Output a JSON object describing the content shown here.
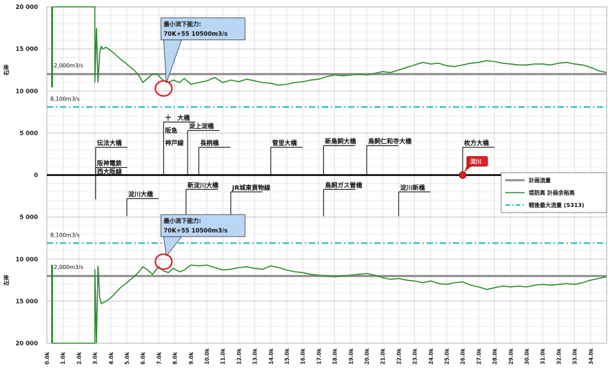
{
  "chart_data": {
    "type": "line",
    "x_range": [
      0,
      35
    ],
    "x_ticks": [
      "0.0k",
      "1.0k",
      "2.0k",
      "3.0k",
      "4.0k",
      "5.0k",
      "6.0k",
      "7.0k",
      "8.0k",
      "9.0k",
      "10.0k",
      "11.0k",
      "12.0k",
      "13.0k",
      "14.0k",
      "15.0k",
      "16.0k",
      "17.0k",
      "18.0k",
      "19.0k",
      "20.0k",
      "21.0k",
      "22.0k",
      "23.0k",
      "24.0k",
      "25.0k",
      "26.0k",
      "27.0k",
      "28.0k",
      "29.0k",
      "30.0k",
      "31.0k",
      "32.0k",
      "33.0k",
      "34.0k"
    ],
    "y_range": [
      -20000,
      20000
    ],
    "y_ticks": [
      {
        "value": 20000,
        "label": "20 000"
      },
      {
        "value": 15000,
        "label": "15 000"
      },
      {
        "value": 10000,
        "label": "10 000"
      },
      {
        "value": 5000,
        "label": "5 000"
      },
      {
        "value": 0,
        "label": "0"
      },
      {
        "value": -5000,
        "label": "5 000"
      },
      {
        "value": -10000,
        "label": "10 000"
      },
      {
        "value": -15000,
        "label": "15 000"
      },
      {
        "value": -20000,
        "label": "20 000"
      }
    ],
    "bank_labels": {
      "upper": "右岸",
      "lower": "左岸"
    },
    "grid": true,
    "reference_lines": [
      {
        "name": "計画流量",
        "value": 12000,
        "label": "12,000m3/s",
        "color": "#8c8c8c",
        "style": "solid"
      },
      {
        "name": "計画流量",
        "value": -12000,
        "label": "12,000m3/s",
        "color": "#8c8c8c",
        "style": "solid"
      },
      {
        "name": "戦後最大流量(S313)",
        "value": 8100,
        "label": "8,100m3/s",
        "color": "#2ec4c4",
        "style": "dashdot"
      },
      {
        "name": "戦後最大流量(S313)",
        "value": -8100,
        "label": "8,100m3/s",
        "color": "#2ec4c4",
        "style": "dashdot"
      }
    ],
    "series": [
      {
        "name": "堤防高 計画余裕高",
        "color": "#2e8b2e",
        "side": "upper",
        "x": [
          0.3,
          0.3,
          0.35,
          0.35,
          3.0,
          3.0,
          3.1,
          3.2,
          3.3,
          3.4,
          3.5,
          3.7,
          4.0,
          4.3,
          4.6,
          5.0,
          5.5,
          5.8,
          6.0,
          6.3,
          6.6,
          6.9,
          7.3,
          7.6,
          7.9,
          8.3,
          8.6,
          9.0,
          9.5,
          10.0,
          10.5,
          11.0,
          11.5,
          12.0,
          12.5,
          13.0,
          13.5,
          14.0,
          14.5,
          15.0,
          15.5,
          16.0,
          16.5,
          17.0,
          17.5,
          18.0,
          18.5,
          19.0,
          19.5,
          20.0,
          20.5,
          21.0,
          21.5,
          22.0,
          22.5,
          23.0,
          23.5,
          24.0,
          24.5,
          25.0,
          25.5,
          26.0,
          26.5,
          27.0,
          27.5,
          28.0,
          28.5,
          29.0,
          29.5,
          30.0,
          30.5,
          31.0,
          31.5,
          32.0,
          32.5,
          33.0,
          33.5,
          34.0,
          34.5,
          35.0
        ],
        "y": [
          20000,
          10500,
          10500,
          20000,
          20000,
          11000,
          17500,
          11000,
          14500,
          15300,
          15000,
          15200,
          14800,
          14300,
          13800,
          13200,
          12400,
          11700,
          11000,
          11500,
          12000,
          12000,
          11200,
          11000,
          11300,
          11000,
          11500,
          10800,
          11000,
          11200,
          11600,
          11000,
          11300,
          11100,
          11400,
          11200,
          11000,
          10900,
          10700,
          10800,
          11000,
          11100,
          11300,
          11400,
          11700,
          11900,
          11800,
          11900,
          12000,
          11900,
          12100,
          12300,
          12200,
          12500,
          12800,
          13100,
          13400,
          13200,
          13300,
          13000,
          12900,
          13100,
          13300,
          13400,
          13600,
          13500,
          13300,
          13200,
          13100,
          13100,
          13200,
          13200,
          13100,
          13300,
          13400,
          13200,
          13100,
          12800,
          12400,
          12200
        ]
      },
      {
        "name": "堤防高 計画余裕高",
        "color": "#2e8b2e",
        "side": "lower",
        "x": [
          0.3,
          0.3,
          0.35,
          0.35,
          3.0,
          3.0,
          3.1,
          3.2,
          3.3,
          3.4,
          3.7,
          4.0,
          4.3,
          4.6,
          5.0,
          5.5,
          5.8,
          6.0,
          6.3,
          6.6,
          7.0,
          7.3,
          7.6,
          7.9,
          8.3,
          8.6,
          9.0,
          9.5,
          10.0,
          10.5,
          11.0,
          11.5,
          12.0,
          12.5,
          13.0,
          13.5,
          14.0,
          14.5,
          15.0,
          15.5,
          16.0,
          16.5,
          17.0,
          17.5,
          18.0,
          18.5,
          19.0,
          19.5,
          20.0,
          20.5,
          21.0,
          21.5,
          22.0,
          22.5,
          23.0,
          23.5,
          24.0,
          24.5,
          25.0,
          25.5,
          26.0,
          26.5,
          27.0,
          27.5,
          28.0,
          28.5,
          29.0,
          29.5,
          30.0,
          30.5,
          31.0,
          31.5,
          32.0,
          32.5,
          33.0,
          33.5,
          34.0,
          34.5,
          35.0
        ],
        "y": [
          -20000,
          -10800,
          -10800,
          -20000,
          -20000,
          -11200,
          -20000,
          -10800,
          -14500,
          -15300,
          -15000,
          -14600,
          -14000,
          -13400,
          -12800,
          -12000,
          -11400,
          -10900,
          -11300,
          -11800,
          -10900,
          -11400,
          -11600,
          -11100,
          -11500,
          -11300,
          -10700,
          -10800,
          -10700,
          -11000,
          -11300,
          -11200,
          -11000,
          -10900,
          -11100,
          -11200,
          -10800,
          -11000,
          -11300,
          -11500,
          -11600,
          -11800,
          -11900,
          -12000,
          -12100,
          -12000,
          -11900,
          -11800,
          -11700,
          -11900,
          -12200,
          -12400,
          -12300,
          -12500,
          -12600,
          -12800,
          -12600,
          -12900,
          -13000,
          -12800,
          -12700,
          -13100,
          -13300,
          -13600,
          -13400,
          -13200,
          -13300,
          -13200,
          -13300,
          -13100,
          -13000,
          -13100,
          -13000,
          -12900,
          -13000,
          -12800,
          -12500,
          -12300,
          -12100
        ]
      }
    ],
    "callouts": [
      {
        "line1": "最小流下能力:",
        "line2": "70K+55  10500m3/s",
        "x": 7.3,
        "y": 10300
      },
      {
        "line1": "最小流下能力:",
        "line2": "70K+55  10500m3/s",
        "x": 7.3,
        "y": -10300
      }
    ],
    "marker": {
      "x": 26.0,
      "y": 0,
      "label": "淀川",
      "color": "#e02020"
    },
    "bridges_upper": [
      {
        "label": "伝法大橋",
        "x": 3.05,
        "top": 3300
      },
      {
        "label": "十　大橋",
        "x": 7.3,
        "top": 6300
      },
      {
        "label": "阪急",
        "x": 7.3,
        "top": 4800,
        "noline": true
      },
      {
        "label": "神戸線",
        "x": 7.3,
        "top": 3300,
        "noline": true
      },
      {
        "label": "淀上淀橋",
        "x": 8.8,
        "top": 5300
      },
      {
        "label": "長柄橋",
        "x": 9.5,
        "top": 3300
      },
      {
        "label": "菅里大橋",
        "x": 14.0,
        "top": 3300
      },
      {
        "label": "新鳥飼大橋",
        "x": 17.3,
        "top": 3500
      },
      {
        "label": "鳥飼仁和寺大橋",
        "x": 20.0,
        "top": 3500
      },
      {
        "label": "枚方大橋",
        "x": 26.0,
        "top": 3300
      }
    ],
    "bridges_lower": [
      {
        "label": "阪神電鉄",
        "x": 3.05,
        "top": 900,
        "bottom": -2900
      },
      {
        "label": "西大阪線",
        "x": 3.05,
        "top": -100,
        "noline": true
      },
      {
        "label": "淀川大橋",
        "x": 5.0,
        "top": -2800,
        "bottom": -4900
      },
      {
        "label": "新淀川大橋",
        "x": 8.7,
        "top": -1700,
        "bottom": -4900
      },
      {
        "label": "JR城東貨物線",
        "x": 11.5,
        "top": -2000,
        "bottom": -4900
      },
      {
        "label": "鳥飼ガス管橋",
        "x": 17.3,
        "top": -1700,
        "bottom": -4900
      },
      {
        "label": "淀川新橋",
        "x": 22.0,
        "top": -2000,
        "bottom": -4900
      }
    ],
    "legend": {
      "placement": "right",
      "items": [
        {
          "label": "計画流量",
          "color": "#8c8c8c",
          "style": "solid"
        },
        {
          "label": "堤防高 計画余裕高",
          "color": "#2e8b2e",
          "style": "thin"
        },
        {
          "label": "戦後最大流量 (S313)",
          "color": "#2ec4c4",
          "style": "dashdot"
        }
      ]
    }
  }
}
